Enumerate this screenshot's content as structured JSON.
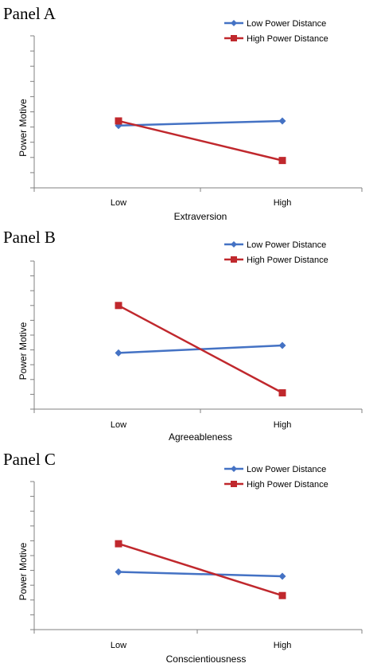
{
  "colors": {
    "low_series": "#4472C4",
    "high_series": "#C0282D",
    "axis": "#808080"
  },
  "chart_data": [
    {
      "type": "line",
      "panel_label": "Panel A",
      "xlabel": "Extraversion",
      "ylabel": "Power Motive",
      "categories": [
        "Low",
        "High"
      ],
      "ylim": [
        0,
        10
      ],
      "y_ticks": 10,
      "legend_position": "top-right",
      "series": [
        {
          "name": "Low Power Distance",
          "values": [
            4.1,
            4.4
          ],
          "marker": "diamond"
        },
        {
          "name": "High Power Distance",
          "values": [
            4.4,
            1.8
          ],
          "marker": "square"
        }
      ]
    },
    {
      "type": "line",
      "panel_label": "Panel B",
      "xlabel": "Agreeableness",
      "ylabel": "Power Motive",
      "categories": [
        "Low",
        "High"
      ],
      "ylim": [
        0,
        10
      ],
      "y_ticks": 10,
      "legend_position": "top-right",
      "series": [
        {
          "name": "Low Power Distance",
          "values": [
            3.8,
            4.3
          ],
          "marker": "diamond"
        },
        {
          "name": "High Power Distance",
          "values": [
            7.0,
            1.1
          ],
          "marker": "square"
        }
      ]
    },
    {
      "type": "line",
      "panel_label": "Panel C",
      "xlabel": "Conscientiousness",
      "ylabel": "Power Motive",
      "categories": [
        "Low",
        "High"
      ],
      "ylim": [
        0,
        10
      ],
      "y_ticks": 10,
      "legend_position": "top-right",
      "series": [
        {
          "name": "Low Power Distance",
          "values": [
            3.9,
            3.6
          ],
          "marker": "diamond"
        },
        {
          "name": "High Power Distance",
          "values": [
            5.8,
            2.3
          ],
          "marker": "square"
        }
      ]
    }
  ]
}
